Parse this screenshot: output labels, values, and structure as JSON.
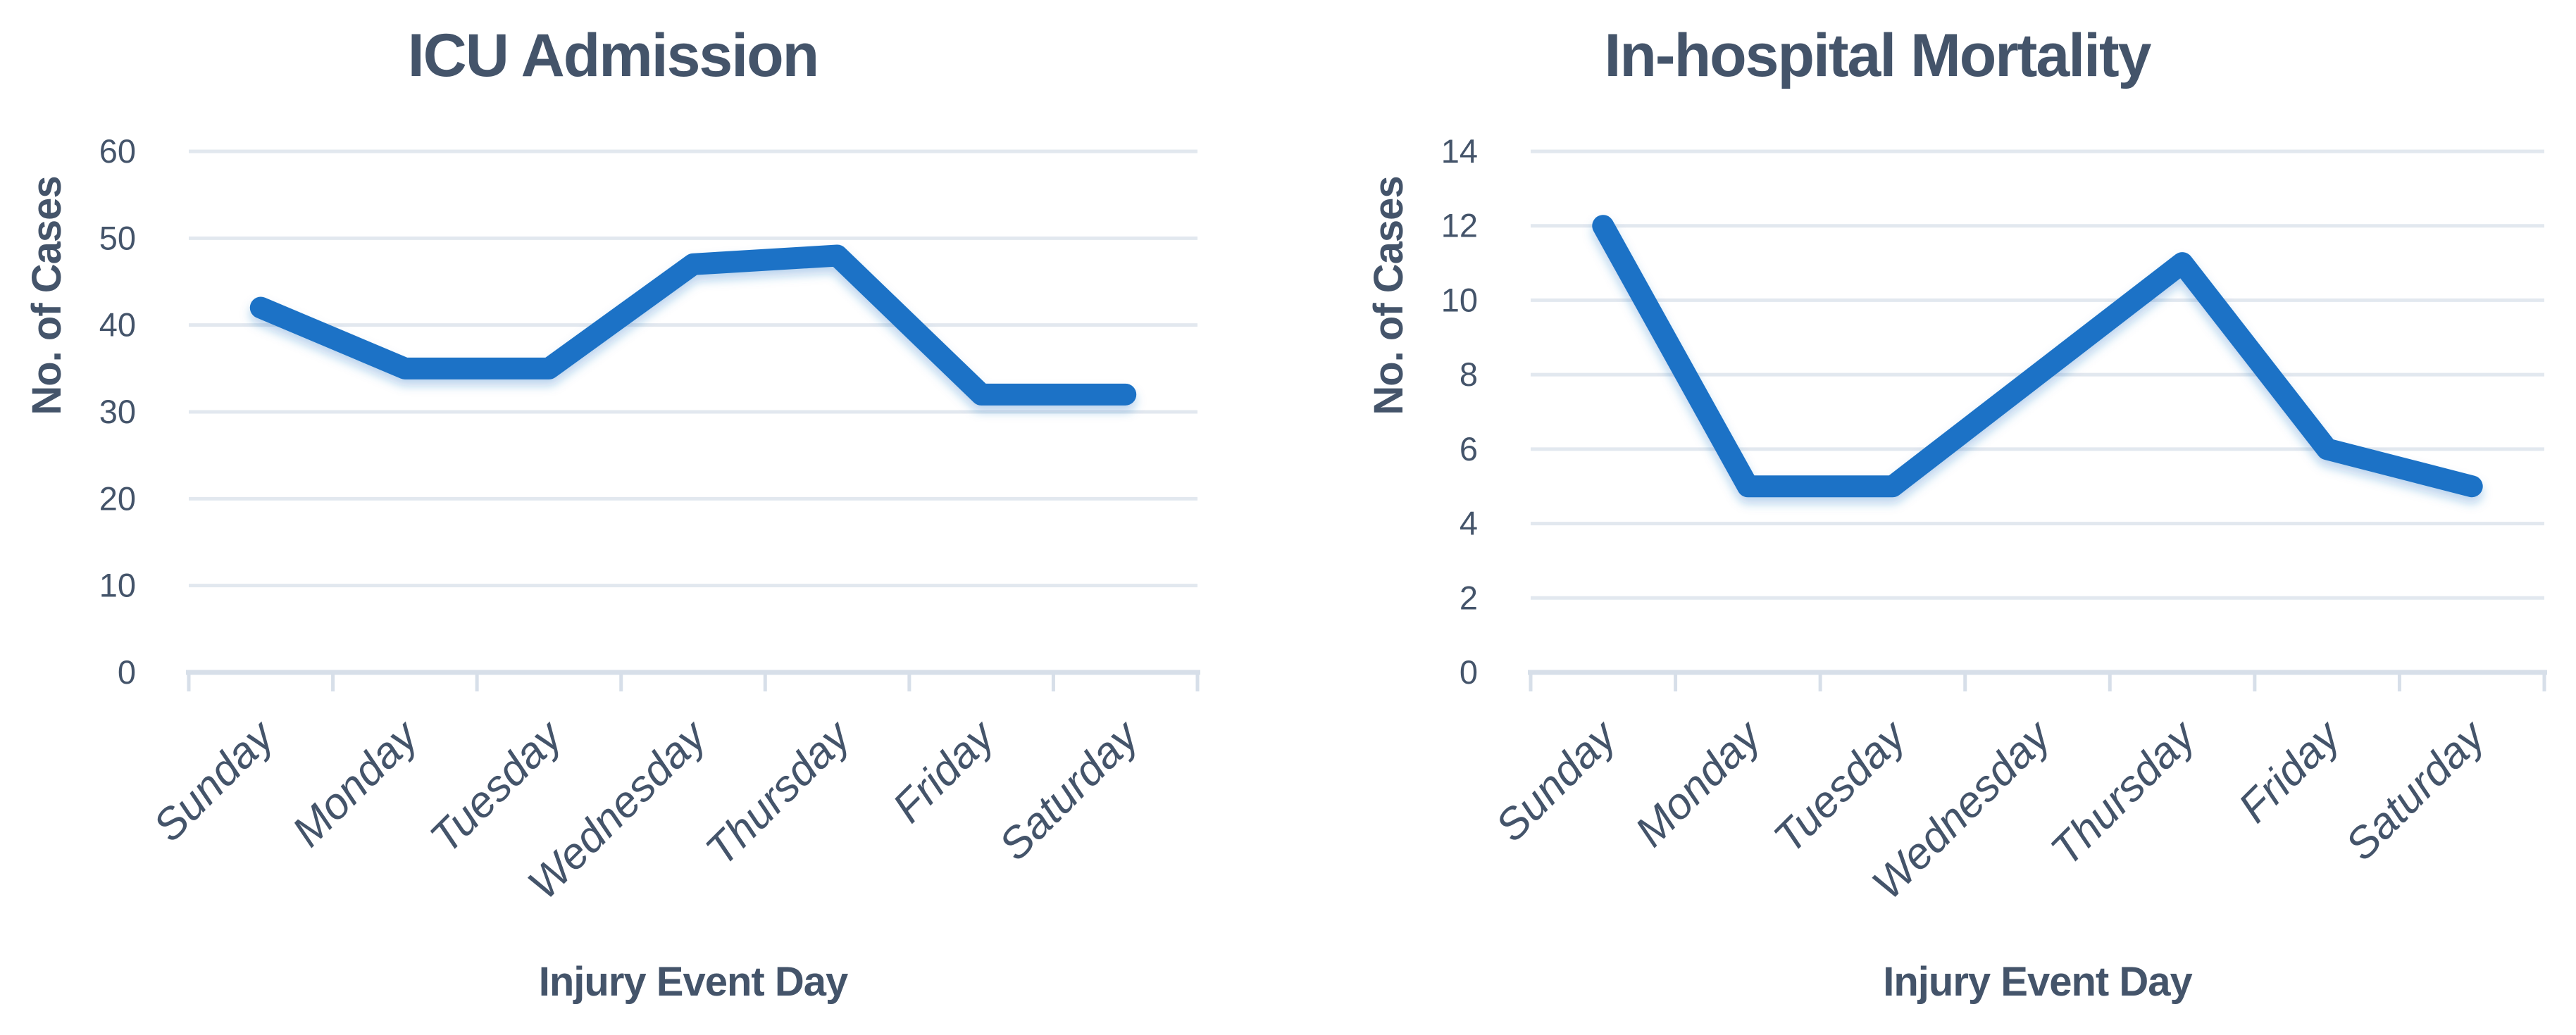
{
  "page": {
    "background": "#FFFFFF"
  },
  "colors": {
    "line": "#1F72C6",
    "text": "#44546A",
    "grid": "#E2E8EF",
    "axis": "#D7DFE9"
  },
  "chart_data": [
    {
      "type": "line",
      "title": "ICU Admission",
      "categories": [
        "Sunday",
        "Monday",
        "Tuesday",
        "Wednesday",
        "Thursday",
        "Friday",
        "Saturday"
      ],
      "values": [
        42,
        35,
        35,
        47,
        48,
        32,
        32
      ],
      "xlabel": "Injury Event Day",
      "ylabel": "No. of Cases",
      "ylim": [
        0,
        60
      ],
      "ytick_step": 10,
      "yticks": [
        0,
        10,
        20,
        30,
        40,
        50,
        60
      ],
      "grid": true,
      "legend": "none",
      "line_color": "#1F72C6"
    },
    {
      "type": "line",
      "title": "In-hospital Mortality",
      "categories": [
        "Sunday",
        "Monday",
        "Tuesday",
        "Wednesday",
        "Thursday",
        "Friday",
        "Saturday"
      ],
      "values": [
        12,
        5,
        5,
        8,
        11,
        6,
        5
      ],
      "xlabel": "Injury Event Day",
      "ylabel": "No. of Cases",
      "ylim": [
        0,
        14
      ],
      "ytick_step": 2,
      "yticks": [
        0,
        2,
        4,
        6,
        8,
        10,
        12,
        14
      ],
      "grid": true,
      "legend": "none",
      "line_color": "#1F72C6"
    }
  ]
}
